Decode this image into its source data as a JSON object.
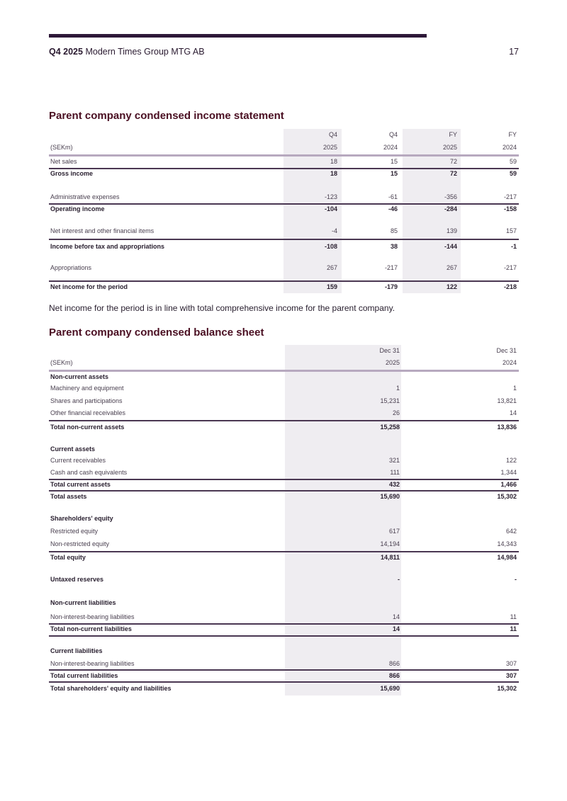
{
  "header": {
    "period": "Q4 2025",
    "company": "Modern Times Group MTG AB",
    "page_number": "17"
  },
  "income_statement": {
    "title": "Parent company condensed income statement",
    "unit": "(SEKm)",
    "columns": [
      {
        "top": "Q4",
        "bottom": "2025"
      },
      {
        "top": "Q4",
        "bottom": "2024"
      },
      {
        "top": "FY",
        "bottom": "2025"
      },
      {
        "top": "FY",
        "bottom": "2024"
      }
    ],
    "rows": [
      {
        "label": "Net sales",
        "bold": false,
        "values": [
          "18",
          "15",
          "72",
          "59"
        ]
      },
      {
        "label": "Gross income",
        "bold": true,
        "values": [
          "18",
          "15",
          "72",
          "59"
        ]
      },
      {
        "label": "Administrative expenses",
        "bold": false,
        "values": [
          "-123",
          "-61",
          "-356",
          "-217"
        ]
      },
      {
        "label": "Operating income",
        "bold": true,
        "values": [
          "-104",
          "-46",
          "-284",
          "-158"
        ]
      },
      {
        "label": "Net interest and other financial items",
        "bold": false,
        "values": [
          "-4",
          "85",
          "139",
          "157"
        ]
      },
      {
        "label": "Income before tax and appropriations",
        "bold": true,
        "values": [
          "-108",
          "38",
          "-144",
          "-1"
        ]
      },
      {
        "label": "Appropriations",
        "bold": false,
        "values": [
          "267",
          "-217",
          "267",
          "-217"
        ]
      },
      {
        "label": "Net income for the period",
        "bold": true,
        "values": [
          "159",
          "-179",
          "122",
          "-218"
        ]
      }
    ],
    "note": "Net income for the period is in line with total comprehensive income for the parent company."
  },
  "balance_sheet": {
    "title": "Parent company condensed balance sheet",
    "unit": "(SEKm)",
    "columns": [
      {
        "top": "Dec 31",
        "bottom": "2025"
      },
      {
        "top": "Dec 31",
        "bottom": "2024"
      }
    ],
    "rows": [
      {
        "label": "Non-current assets",
        "bold": true,
        "values": [
          "",
          ""
        ]
      },
      {
        "label": "Machinery and equipment",
        "bold": false,
        "values": [
          "1",
          "1"
        ]
      },
      {
        "label": "Shares and participations",
        "bold": false,
        "values": [
          "15,231",
          "13,821"
        ]
      },
      {
        "label": "Other financial receivables",
        "bold": false,
        "values": [
          "26",
          "14"
        ]
      },
      {
        "label": "Total non-current assets",
        "bold": true,
        "values": [
          "15,258",
          "13,836"
        ]
      },
      {
        "label": "Current assets",
        "bold": true,
        "values": [
          "",
          ""
        ]
      },
      {
        "label": "Current receivables",
        "bold": false,
        "values": [
          "321",
          "122"
        ]
      },
      {
        "label": "Cash and cash equivalents",
        "bold": false,
        "values": [
          "111",
          "1,344"
        ]
      },
      {
        "label": "Total current assets",
        "bold": true,
        "values": [
          "432",
          "1,466"
        ]
      },
      {
        "label": "Total assets",
        "bold": true,
        "values": [
          "15,690",
          "15,302"
        ]
      },
      {
        "label": "Shareholders' equity",
        "bold": true,
        "values": [
          "",
          ""
        ]
      },
      {
        "label": "Restricted equity",
        "bold": false,
        "values": [
          "617",
          "642"
        ]
      },
      {
        "label": "Non-restricted equity",
        "bold": false,
        "values": [
          "14,194",
          "14,343"
        ]
      },
      {
        "label": "Total equity",
        "bold": true,
        "values": [
          "14,811",
          "14,984"
        ]
      },
      {
        "label": "Untaxed reserves",
        "bold": true,
        "values": [
          "-",
          "-"
        ]
      },
      {
        "label": "Non-current liabilities",
        "bold": true,
        "values": [
          "",
          ""
        ]
      },
      {
        "label": "Non-interest-bearing liabilities",
        "bold": false,
        "values": [
          "14",
          "11"
        ]
      },
      {
        "label": "Total non-current liabilities",
        "bold": true,
        "values": [
          "14",
          "11"
        ]
      },
      {
        "label": "Current liabilities",
        "bold": true,
        "values": [
          "",
          ""
        ]
      },
      {
        "label": "Non-interest-bearing liabilities",
        "bold": false,
        "values": [
          "866",
          "307"
        ]
      },
      {
        "label": "Total current liabilities",
        "bold": true,
        "values": [
          "866",
          "307"
        ]
      },
      {
        "label": "Total shareholders' equity and liabilities",
        "bold": true,
        "values": [
          "15,690",
          "15,302"
        ]
      }
    ]
  }
}
